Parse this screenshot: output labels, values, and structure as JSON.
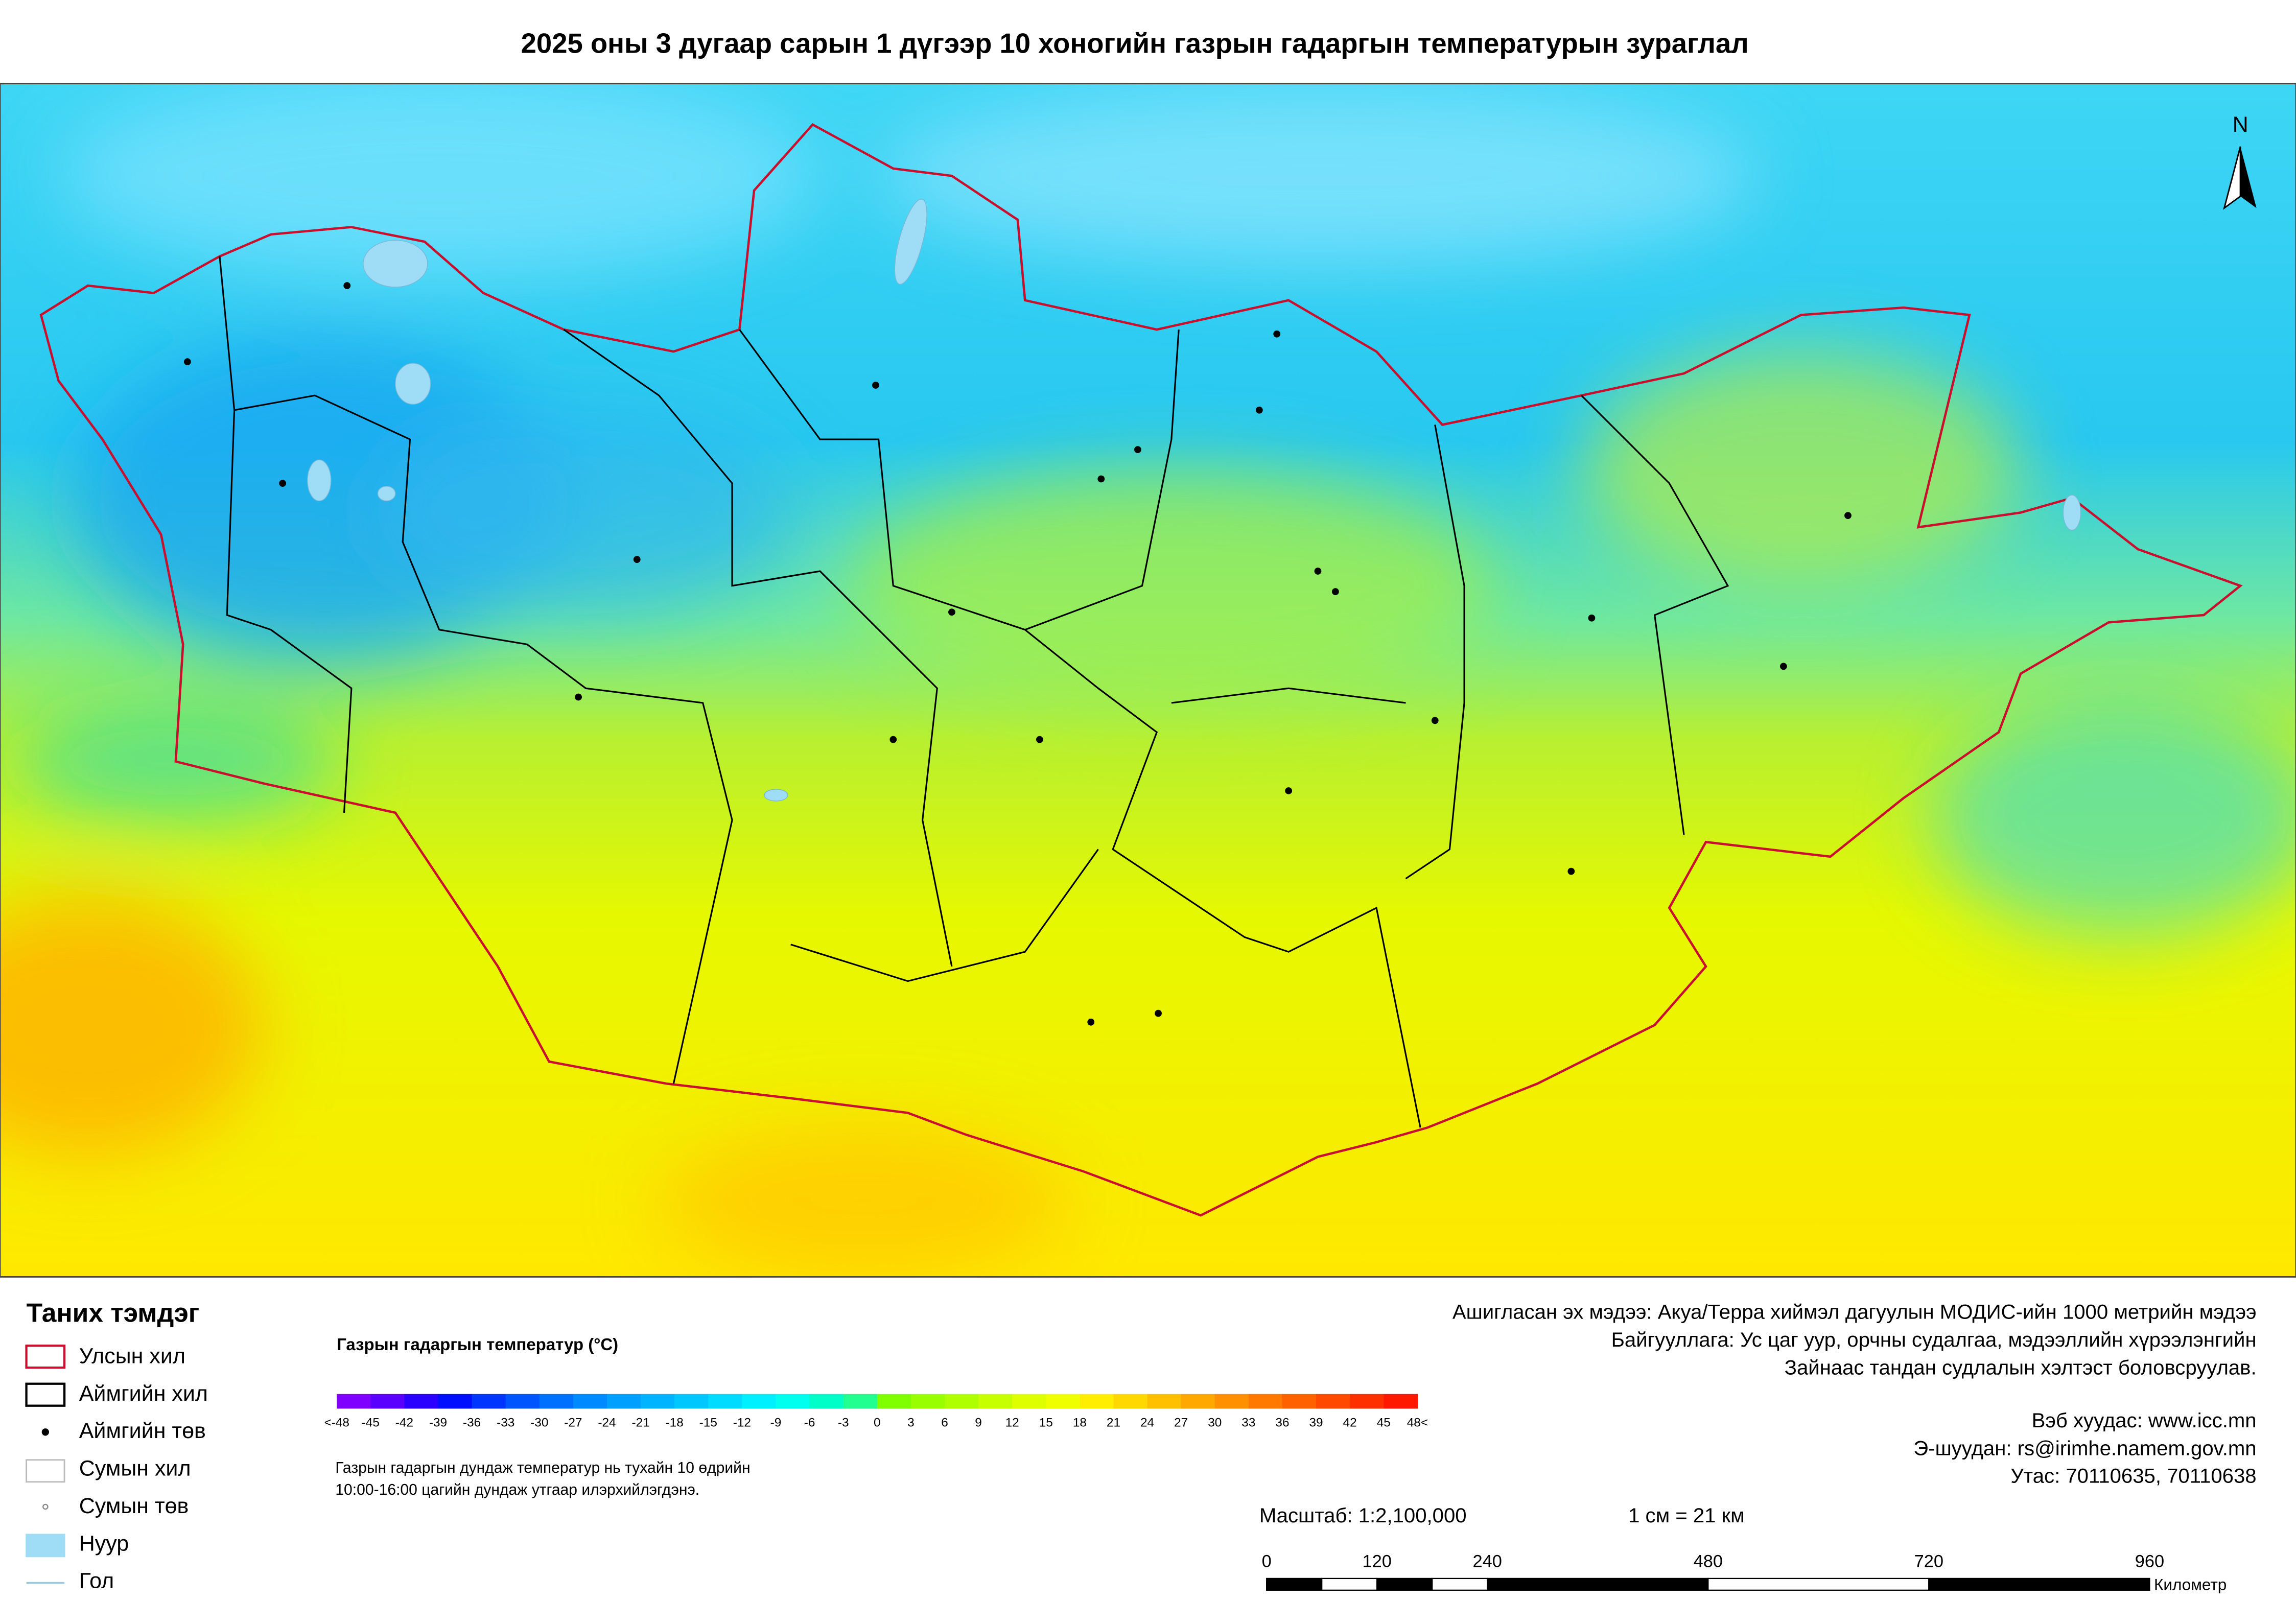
{
  "title": "2025 оны 3 дугаар сарын 1 дүгээр 10 хоногийн газрын гадаргын температурын зураглал",
  "north": "N",
  "legend": {
    "title": "Таних тэмдэг",
    "items": [
      "Улсын хил",
      "Аймгийн хил",
      "Аймгийн төв",
      "Сумын хил",
      "Сумын төв",
      "Нуур",
      "Гол"
    ]
  },
  "colorbar": {
    "title": "Газрын гадаргын температур (°C)",
    "labels": [
      "<-48",
      "-45",
      "-42",
      "-39",
      "-36",
      "-33",
      "-30",
      "-27",
      "-24",
      "-21",
      "-18",
      "-15",
      "-12",
      "-9",
      "-6",
      "-3",
      "0",
      "3",
      "6",
      "9",
      "12",
      "15",
      "18",
      "21",
      "24",
      "27",
      "30",
      "33",
      "36",
      "39",
      "42",
      "45",
      "48<"
    ],
    "colors": [
      "#7f00ff",
      "#5a00ff",
      "#2a00ff",
      "#0010ff",
      "#0035ff",
      "#0055ff",
      "#0070ff",
      "#008aff",
      "#00a0ff",
      "#00b4ff",
      "#00c8ff",
      "#00dcff",
      "#00f0ff",
      "#00ffee",
      "#00ffc8",
      "#20ff90",
      "#80ff00",
      "#99ff00",
      "#b0ff00",
      "#c8ff00",
      "#ddff00",
      "#f0ff00",
      "#ffee00",
      "#ffd800",
      "#ffc000",
      "#ffa800",
      "#ff9000",
      "#ff7800",
      "#ff6000",
      "#ff4800",
      "#ff3000",
      "#ff1800"
    ],
    "note": [
      "Газрын гадаргын дундаж температур нь тухайн 10 өдрийн",
      "10:00-16:00 цагийн дундаж утгаар илэрхийлэгдэнэ."
    ]
  },
  "source": [
    "Ашигласан эх мэдээ: Акуа/Терра хиймэл дагуулын МОДИС-ийн 1000 метрийн мэдээ",
    "Байгууллага: Ус цаг уур, орчны судалгаа, мэдээллийн хүрээлэнгийн",
    "Зайнаас тандан судлалын хэлтэст боловсруулав."
  ],
  "contact": [
    "Вэб хуудас: www.icc.mn",
    "Э-шуудан: rs@irimhe.namem.gov.mn",
    "Утас: 70110635, 70110638"
  ],
  "scale": {
    "text": "Масштаб: 1:2,100,000",
    "ratio": "1 см = 21 км",
    "ticks": [
      0,
      120,
      240,
      480,
      720,
      960
    ],
    "unit": "Километр"
  }
}
